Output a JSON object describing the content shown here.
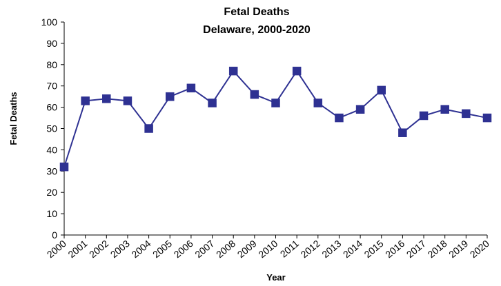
{
  "chart_data": {
    "type": "line",
    "title": "Fetal Deaths",
    "subtitle": "Delaware,  2000-2020",
    "xlabel": "Year",
    "ylabel": "Fetal Deaths",
    "ylim": [
      0,
      100
    ],
    "yticks": [
      0,
      10,
      20,
      30,
      40,
      50,
      60,
      70,
      80,
      90,
      100
    ],
    "categories": [
      "2000",
      "2001",
      "2002",
      "2003",
      "2004",
      "2005",
      "2006",
      "2007",
      "2008",
      "2009",
      "2010",
      "2011",
      "2012",
      "2013",
      "2014",
      "2015",
      "2016",
      "2017",
      "2018",
      "2019",
      "2020"
    ],
    "series": [
      {
        "values": [
          32,
          63,
          64,
          63,
          50,
          65,
          69,
          62,
          77,
          66,
          62,
          77,
          62,
          55,
          59,
          68,
          48,
          56,
          59,
          57,
          55
        ]
      }
    ],
    "grid": false,
    "legend": "none",
    "colors": {
      "series": "#2E3192",
      "axis": "#000000"
    },
    "marker": "square"
  }
}
